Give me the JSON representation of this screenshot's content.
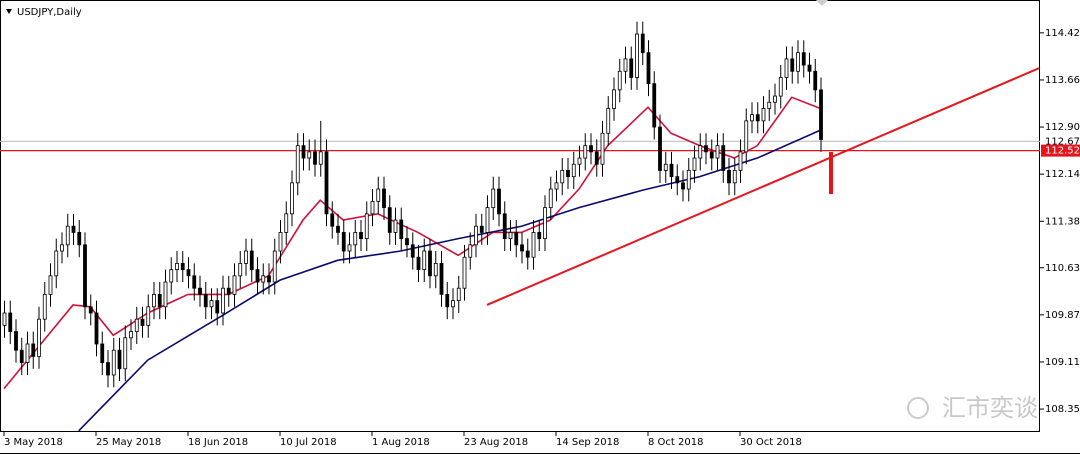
{
  "chart_data": {
    "type": "candlestick",
    "title": "USDJPY,Daily",
    "watermark": "汇市奕谈",
    "categories": [
      "3 May 2018",
      null,
      null,
      null,
      null,
      null,
      null,
      null,
      null,
      null,
      null,
      null,
      null,
      null,
      null,
      null,
      "25 May 2018",
      null,
      null,
      null,
      null,
      null,
      null,
      null,
      null,
      null,
      null,
      null,
      null,
      null,
      null,
      null,
      "18 Jun 2018",
      null,
      null,
      null,
      null,
      null,
      null,
      null,
      null,
      null,
      null,
      null,
      null,
      null,
      null,
      null,
      "10 Jul 2018",
      null,
      null,
      null,
      null,
      null,
      null,
      null,
      null,
      null,
      null,
      null,
      null,
      null,
      null,
      null,
      "1 Aug 2018",
      null,
      null,
      null,
      null,
      null,
      null,
      null,
      null,
      null,
      null,
      null,
      null,
      null,
      null,
      null,
      "23 Aug 2018",
      null,
      null,
      null,
      null,
      null,
      null,
      null,
      null,
      null,
      null,
      null,
      null,
      null,
      null,
      null,
      "14 Sep 2018",
      null,
      null,
      null,
      null,
      null,
      null,
      null,
      null,
      null,
      null,
      null,
      null,
      null,
      null,
      null,
      "8 Oct 2018",
      null,
      null,
      null,
      null,
      null,
      null,
      null,
      null,
      null,
      null,
      null,
      null,
      null,
      null,
      null,
      "30 Oct 2018",
      null,
      null,
      null,
      null,
      null,
      null,
      null,
      null,
      null,
      null,
      null,
      null,
      null,
      null
    ],
    "ohlc": [
      [
        109.7,
        110.1,
        109.5,
        109.9
      ],
      [
        109.9,
        110.1,
        109.4,
        109.6
      ],
      [
        109.6,
        109.8,
        109.1,
        109.3
      ],
      [
        109.3,
        109.5,
        108.9,
        109.1
      ],
      [
        109.1,
        109.6,
        108.9,
        109.4
      ],
      [
        109.4,
        109.6,
        109.0,
        109.2
      ],
      [
        109.2,
        110.0,
        109.0,
        109.8
      ],
      [
        109.8,
        110.4,
        109.6,
        110.2
      ],
      [
        110.2,
        110.7,
        110.0,
        110.5
      ],
      [
        110.5,
        111.1,
        110.3,
        110.9
      ],
      [
        110.9,
        111.2,
        110.7,
        111.0
      ],
      [
        111.0,
        111.5,
        110.8,
        111.3
      ],
      [
        111.3,
        111.5,
        111.0,
        111.2
      ],
      [
        111.2,
        111.4,
        110.8,
        111.0
      ],
      [
        111.0,
        111.2,
        109.8,
        110.0
      ],
      [
        110.0,
        110.2,
        109.7,
        109.9
      ],
      [
        109.9,
        110.1,
        109.2,
        109.4
      ],
      [
        109.4,
        109.6,
        108.9,
        109.1
      ],
      [
        109.1,
        109.3,
        108.7,
        108.9
      ],
      [
        108.9,
        109.5,
        108.7,
        109.3
      ],
      [
        109.3,
        109.5,
        108.8,
        109.0
      ],
      [
        109.0,
        109.7,
        108.8,
        109.5
      ],
      [
        109.5,
        109.8,
        109.3,
        109.6
      ],
      [
        109.6,
        110.0,
        109.4,
        109.8
      ],
      [
        109.8,
        110.0,
        109.5,
        109.7
      ],
      [
        109.7,
        110.2,
        109.5,
        110.0
      ],
      [
        110.0,
        110.4,
        109.8,
        110.2
      ],
      [
        110.2,
        110.4,
        109.8,
        110.0
      ],
      [
        110.0,
        110.6,
        109.8,
        110.4
      ],
      [
        110.4,
        110.8,
        110.2,
        110.6
      ],
      [
        110.6,
        110.9,
        110.4,
        110.7
      ],
      [
        110.7,
        110.9,
        110.4,
        110.6
      ],
      [
        110.6,
        110.8,
        110.3,
        110.5
      ],
      [
        110.5,
        110.7,
        110.1,
        110.3
      ],
      [
        110.3,
        110.5,
        110.0,
        110.2
      ],
      [
        110.2,
        110.4,
        109.8,
        110.0
      ],
      [
        110.0,
        110.3,
        109.8,
        110.1
      ],
      [
        110.1,
        110.3,
        109.7,
        109.9
      ],
      [
        109.9,
        110.5,
        109.7,
        110.3
      ],
      [
        110.3,
        110.5,
        110.0,
        110.2
      ],
      [
        110.2,
        110.7,
        110.0,
        110.5
      ],
      [
        110.5,
        110.9,
        110.3,
        110.7
      ],
      [
        110.7,
        111.1,
        110.5,
        110.9
      ],
      [
        110.9,
        111.1,
        110.4,
        110.6
      ],
      [
        110.6,
        110.8,
        110.2,
        110.4
      ],
      [
        110.4,
        110.7,
        110.2,
        110.5
      ],
      [
        110.5,
        110.7,
        110.2,
        110.4
      ],
      [
        110.4,
        111.1,
        110.2,
        110.9
      ],
      [
        110.9,
        111.4,
        110.7,
        111.2
      ],
      [
        111.2,
        111.7,
        111.0,
        111.5
      ],
      [
        111.5,
        112.2,
        111.3,
        112.0
      ],
      [
        112.0,
        112.8,
        111.8,
        112.6
      ],
      [
        112.6,
        112.8,
        112.2,
        112.4
      ],
      [
        112.4,
        112.7,
        112.2,
        112.5
      ],
      [
        112.5,
        112.7,
        112.1,
        112.3
      ],
      [
        112.3,
        113.0,
        112.1,
        112.5
      ],
      [
        112.5,
        112.7,
        111.3,
        111.5
      ],
      [
        111.5,
        111.7,
        111.1,
        111.3
      ],
      [
        111.3,
        111.5,
        111.0,
        111.2
      ],
      [
        111.2,
        111.4,
        110.7,
        110.9
      ],
      [
        110.9,
        111.2,
        110.7,
        111.0
      ],
      [
        111.0,
        111.4,
        110.8,
        111.2
      ],
      [
        111.2,
        111.4,
        110.9,
        111.1
      ],
      [
        111.1,
        111.7,
        110.9,
        111.5
      ],
      [
        111.5,
        111.9,
        111.3,
        111.7
      ],
      [
        111.7,
        112.1,
        111.5,
        111.9
      ],
      [
        111.9,
        112.1,
        111.4,
        111.6
      ],
      [
        111.6,
        111.8,
        111.0,
        111.2
      ],
      [
        111.2,
        111.6,
        111.0,
        111.4
      ],
      [
        111.4,
        111.6,
        110.9,
        111.1
      ],
      [
        111.1,
        111.3,
        110.8,
        111.0
      ],
      [
        111.0,
        111.2,
        110.6,
        110.8
      ],
      [
        110.8,
        111.0,
        110.4,
        110.6
      ],
      [
        110.6,
        111.1,
        110.4,
        110.9
      ],
      [
        110.9,
        111.1,
        110.3,
        110.5
      ],
      [
        110.5,
        110.9,
        110.3,
        110.7
      ],
      [
        110.7,
        110.9,
        110.0,
        110.2
      ],
      [
        110.2,
        110.4,
        109.8,
        110.0
      ],
      [
        110.0,
        110.3,
        109.8,
        110.1
      ],
      [
        110.1,
        110.5,
        109.9,
        110.3
      ],
      [
        110.3,
        111.0,
        110.1,
        110.8
      ],
      [
        110.8,
        111.2,
        110.6,
        111.0
      ],
      [
        111.0,
        111.5,
        110.8,
        111.3
      ],
      [
        111.3,
        111.5,
        111.0,
        111.2
      ],
      [
        111.2,
        111.8,
        111.0,
        111.6
      ],
      [
        111.6,
        112.1,
        111.4,
        111.9
      ],
      [
        111.9,
        112.1,
        111.3,
        111.5
      ],
      [
        111.5,
        111.7,
        110.9,
        111.1
      ],
      [
        111.1,
        111.4,
        110.9,
        111.2
      ],
      [
        111.2,
        111.4,
        110.8,
        111.0
      ],
      [
        111.0,
        111.2,
        110.7,
        110.9
      ],
      [
        110.9,
        111.1,
        110.6,
        110.8
      ],
      [
        110.8,
        111.4,
        110.6,
        111.2
      ],
      [
        111.2,
        111.4,
        110.9,
        111.1
      ],
      [
        111.1,
        111.8,
        110.9,
        111.6
      ],
      [
        111.6,
        112.1,
        111.4,
        111.9
      ],
      [
        111.9,
        112.2,
        111.7,
        112.0
      ],
      [
        112.0,
        112.4,
        111.8,
        112.2
      ],
      [
        112.2,
        112.4,
        111.9,
        112.1
      ],
      [
        112.1,
        112.5,
        111.9,
        112.3
      ],
      [
        112.3,
        112.6,
        112.1,
        112.4
      ],
      [
        112.4,
        112.8,
        112.2,
        112.6
      ],
      [
        112.6,
        112.8,
        112.3,
        112.5
      ],
      [
        112.5,
        112.7,
        112.1,
        112.3
      ],
      [
        112.3,
        113.0,
        112.1,
        112.8
      ],
      [
        112.8,
        113.4,
        112.6,
        113.2
      ],
      [
        113.2,
        113.7,
        113.0,
        113.5
      ],
      [
        113.5,
        114.0,
        113.3,
        113.8
      ],
      [
        113.8,
        114.2,
        113.6,
        114.0
      ],
      [
        114.0,
        114.2,
        113.5,
        113.7
      ],
      [
        113.7,
        114.6,
        113.5,
        114.4
      ],
      [
        114.4,
        114.6,
        113.9,
        114.1
      ],
      [
        114.1,
        114.3,
        113.4,
        113.6
      ],
      [
        113.6,
        113.8,
        112.7,
        112.9
      ],
      [
        112.9,
        113.1,
        112.0,
        112.2
      ],
      [
        112.2,
        112.5,
        112.0,
        112.3
      ],
      [
        112.3,
        112.5,
        111.9,
        112.1
      ],
      [
        112.1,
        112.3,
        111.8,
        112.0
      ],
      [
        112.0,
        112.2,
        111.7,
        111.9
      ],
      [
        111.9,
        112.4,
        111.7,
        112.2
      ],
      [
        112.2,
        112.6,
        112.0,
        112.4
      ],
      [
        112.4,
        112.8,
        112.2,
        112.6
      ],
      [
        112.6,
        112.8,
        112.3,
        112.5
      ],
      [
        112.5,
        112.7,
        112.2,
        112.4
      ],
      [
        112.4,
        112.8,
        112.2,
        112.6
      ],
      [
        112.6,
        112.8,
        112.0,
        112.2
      ],
      [
        112.2,
        112.4,
        111.8,
        112.0
      ],
      [
        112.0,
        112.4,
        111.8,
        112.2
      ],
      [
        112.2,
        112.7,
        112.0,
        112.5
      ],
      [
        112.5,
        113.2,
        112.3,
        113.0
      ],
      [
        113.0,
        113.3,
        112.8,
        113.1
      ],
      [
        113.1,
        113.3,
        112.8,
        113.0
      ],
      [
        113.0,
        113.4,
        112.8,
        113.2
      ],
      [
        113.2,
        113.5,
        113.0,
        113.3
      ],
      [
        113.3,
        113.6,
        113.1,
        113.4
      ],
      [
        113.4,
        113.9,
        113.2,
        113.7
      ],
      [
        113.7,
        114.2,
        113.5,
        114.0
      ],
      [
        114.0,
        114.2,
        113.6,
        113.8
      ],
      [
        113.8,
        114.3,
        113.6,
        114.1
      ],
      [
        114.1,
        114.3,
        113.7,
        113.9
      ],
      [
        113.9,
        114.1,
        113.6,
        113.8
      ],
      [
        113.8,
        114.0,
        113.3,
        113.5
      ],
      [
        113.5,
        113.7,
        112.5,
        112.7
      ]
    ],
    "series": [
      {
        "color": "#d0103a",
        "x": [
          0,
          12,
          15,
          19,
          25,
          32,
          39,
          46,
          52,
          55,
          59,
          65,
          72,
          79,
          85,
          90,
          95,
          100,
          105,
          112,
          116,
          121,
          127,
          131,
          137,
          142
        ],
        "values": [
          108.68,
          110.03,
          110.0,
          109.54,
          109.9,
          110.2,
          110.2,
          110.5,
          111.4,
          111.72,
          111.4,
          111.5,
          111.2,
          110.83,
          111.2,
          111.2,
          111.4,
          111.9,
          112.6,
          113.22,
          112.8,
          112.6,
          112.4,
          112.6,
          113.38,
          113.2
        ]
      },
      {
        "color": "#0a0a6e",
        "x": [
          13,
          25,
          38,
          48,
          58,
          69,
          79,
          90,
          100,
          111,
          121,
          131,
          142
        ],
        "values": [
          108.0,
          109.14,
          109.86,
          110.43,
          110.75,
          110.9,
          111.1,
          111.3,
          111.6,
          111.88,
          112.1,
          112.4,
          112.85
        ]
      }
    ],
    "trendline": {
      "color": "#e8141c",
      "x": [
        84,
        180
      ],
      "values": [
        110.03,
        113.85
      ]
    },
    "hlines": [
      {
        "value": 112.67,
        "color": "#c0c0c0"
      },
      {
        "value": 112.52,
        "color": "#e8141c"
      }
    ],
    "ylim": [
      107.98,
      114.95
    ],
    "yticks": [
      {
        "value": 114.42,
        "label": "114.42"
      },
      {
        "value": 113.66,
        "label": "113.66"
      },
      {
        "value": 112.9,
        "label": "112.90"
      },
      {
        "value": 112.14,
        "label": "112.14"
      },
      {
        "value": 111.38,
        "label": "111.38"
      },
      {
        "value": 110.63,
        "label": "110.63"
      },
      {
        "value": 109.87,
        "label": "109.87"
      },
      {
        "value": 109.11,
        "label": "109.11"
      },
      {
        "value": 108.35,
        "label": "108.35"
      }
    ]
  }
}
